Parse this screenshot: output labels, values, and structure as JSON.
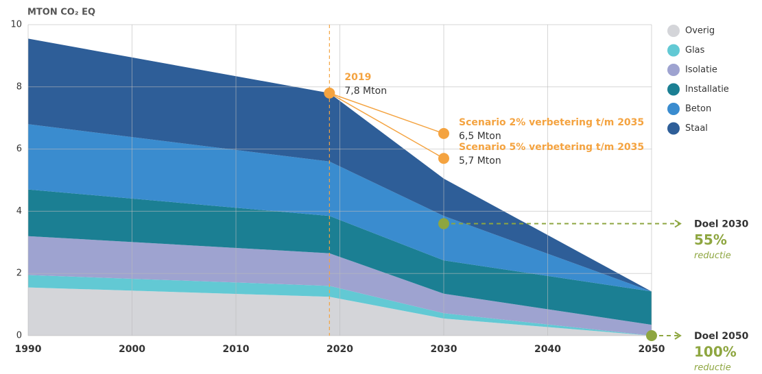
{
  "chart_data": {
    "type": "stacked_area",
    "y_label": "MTON CO₂ EQ",
    "x": [
      1990,
      2019,
      2030,
      2050
    ],
    "series": [
      {
        "name": "Overig",
        "color": "#d4d5d9",
        "values": [
          1.55,
          1.25,
          0.55,
          0
        ]
      },
      {
        "name": "Glas",
        "color": "#62c9d4",
        "values": [
          0.4,
          0.35,
          0.17,
          0
        ]
      },
      {
        "name": "Isolatie",
        "color": "#9ea3d0",
        "values": [
          1.25,
          1.05,
          0.63,
          0.35
        ]
      },
      {
        "name": "Installatie",
        "color": "#1b7f93",
        "values": [
          1.5,
          1.2,
          1.07,
          1.07
        ]
      },
      {
        "name": "Beton",
        "color": "#3a8ccf",
        "values": [
          2.1,
          1.75,
          1.43,
          0
        ]
      },
      {
        "name": "Staal",
        "color": "#2e5e98",
        "values": [
          2.75,
          2.2,
          1.2,
          0
        ]
      }
    ],
    "xlim": [
      1990,
      2050
    ],
    "xticks": [
      1990,
      2000,
      2010,
      2020,
      2030,
      2040,
      2050
    ],
    "ylim": [
      0,
      10
    ],
    "yticks": [
      0,
      2,
      4,
      6,
      8,
      10
    ],
    "grid": true,
    "legend": "right",
    "annotations": [
      {
        "x": 2019,
        "y": 7.8,
        "title": "2019",
        "label": "7,8 Mton",
        "color": "#f4a340"
      },
      {
        "x": 2030,
        "y": 6.5,
        "title": "Scenario 2% verbetering t/m 2035",
        "label": "6,5 Mton",
        "color": "#f4a340"
      },
      {
        "x": 2030,
        "y": 5.7,
        "title": "Scenario 5% verbetering t/m 2035",
        "label": "5,7 Mton",
        "color": "#f4a340"
      }
    ],
    "targets": [
      {
        "x": 2030,
        "y": 3.6,
        "title": "Doel 2030",
        "percent": "55%",
        "note": "reductie",
        "color": "#8ea640"
      },
      {
        "x": 2050,
        "y": 0,
        "title": "Doel 2050",
        "percent": "100%",
        "note": "reductie",
        "color": "#8ea640"
      }
    ]
  }
}
